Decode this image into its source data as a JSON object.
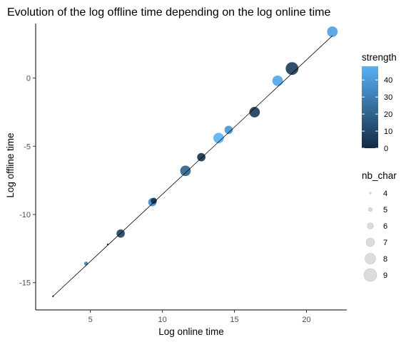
{
  "chart_data": {
    "type": "scatter",
    "title": "Evolution of the log offline time depending on the log online time",
    "xlabel": "Log online time",
    "ylabel": "Log offline time",
    "xlim": [
      1.2,
      22.8
    ],
    "ylim": [
      -17.0,
      4.0
    ],
    "xticks": [
      5,
      10,
      15,
      20
    ],
    "yticks": [
      -15,
      -10,
      -5,
      0
    ],
    "grid": false,
    "legend_position": "right",
    "trend_line": {
      "x": [
        2.4,
        21.8
      ],
      "y": [
        -16.0,
        3.1
      ]
    },
    "points": [
      {
        "x": 2.4,
        "y": -16.0,
        "strength": 0,
        "nb_char": 4
      },
      {
        "x": 4.7,
        "y": -13.6,
        "strength": 30,
        "nb_char": 5
      },
      {
        "x": 6.2,
        "y": -12.2,
        "strength": 0,
        "nb_char": 4
      },
      {
        "x": 7.1,
        "y": -11.4,
        "strength": 8,
        "nb_char": 7
      },
      {
        "x": 9.3,
        "y": -9.1,
        "strength": 35,
        "nb_char": 7
      },
      {
        "x": 9.4,
        "y": -9.0,
        "strength": 2,
        "nb_char": 6
      },
      {
        "x": 11.6,
        "y": -6.8,
        "strength": 20,
        "nb_char": 8
      },
      {
        "x": 12.7,
        "y": -5.8,
        "strength": 2,
        "nb_char": 7
      },
      {
        "x": 13.9,
        "y": -4.4,
        "strength": 48,
        "nb_char": 8
      },
      {
        "x": 14.6,
        "y": -3.8,
        "strength": 38,
        "nb_char": 7
      },
      {
        "x": 16.4,
        "y": -2.5,
        "strength": 5,
        "nb_char": 8
      },
      {
        "x": 18.0,
        "y": -0.2,
        "strength": 44,
        "nb_char": 8
      },
      {
        "x": 19.0,
        "y": 0.7,
        "strength": 6,
        "nb_char": 9
      },
      {
        "x": 21.8,
        "y": 3.4,
        "strength": 42,
        "nb_char": 8
      }
    ],
    "legends": {
      "strength": {
        "title": "strength",
        "labels": [
          "40",
          "30",
          "20",
          "10",
          "0"
        ],
        "values": [
          40,
          30,
          20,
          10,
          0
        ],
        "range": [
          0,
          48
        ],
        "color_low": "#132B43",
        "color_high": "#56B1F7"
      },
      "nb_char": {
        "title": "nb_char",
        "labels": [
          "4",
          "5",
          "6",
          "7",
          "8",
          "9"
        ],
        "values": [
          4,
          5,
          6,
          7,
          8,
          9
        ],
        "key_fill": "#dcdcdc",
        "key_stroke": "#c2c2c2"
      }
    },
    "colors": {
      "point_alpha": 0.9,
      "line": "#000000",
      "axis": "#000000",
      "text": "#4d4d4d"
    }
  }
}
